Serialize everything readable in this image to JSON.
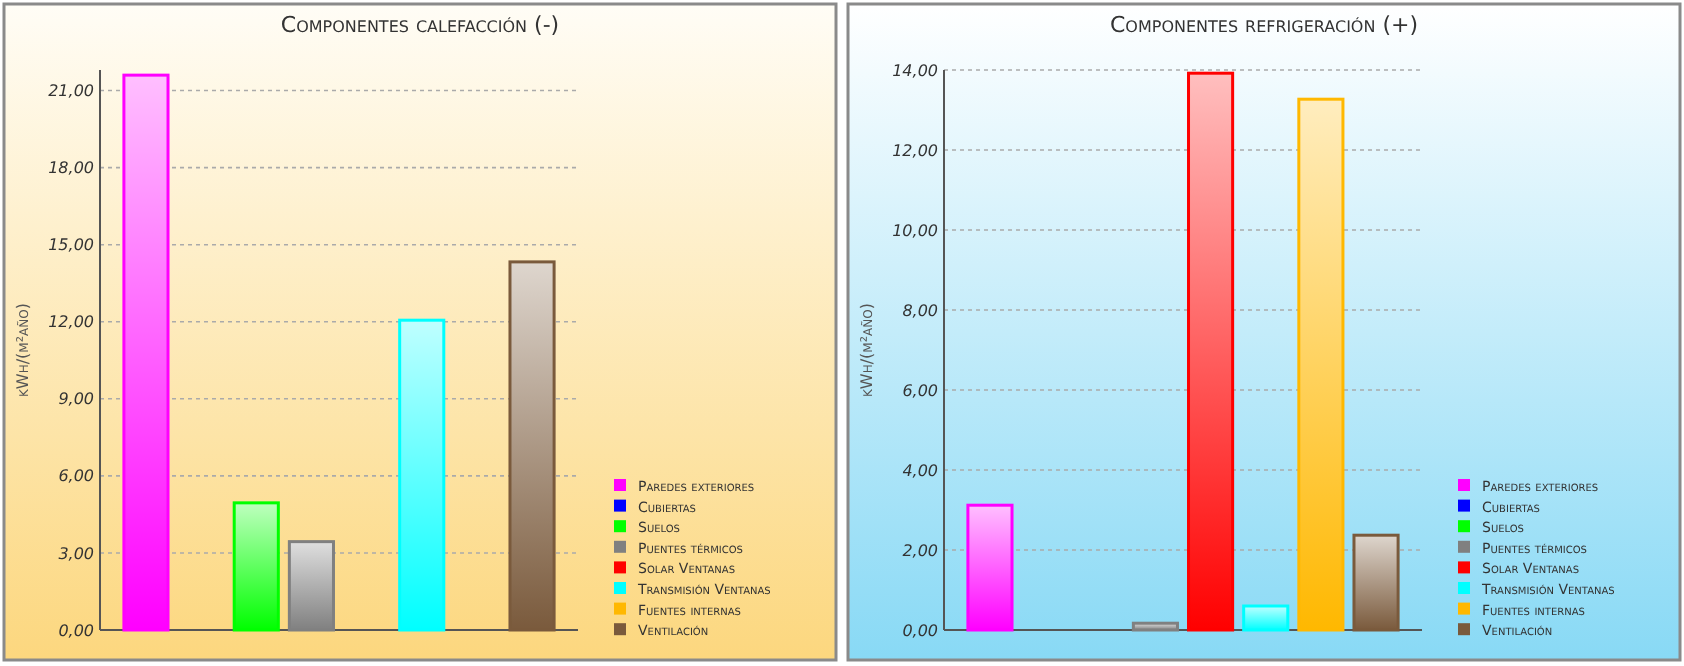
{
  "chart_data": [
    {
      "type": "bar",
      "title": "Componentes calefacción (-)",
      "ylabel": "kWh/(m²año)",
      "categories": [
        null
      ],
      "ylim": [
        0,
        21.8
      ],
      "yticks": [
        {
          "value": 0,
          "label": "0,00"
        },
        {
          "value": 3,
          "label": "3,00"
        },
        {
          "value": 6,
          "label": "6,00"
        },
        {
          "value": 9,
          "label": "9,00"
        },
        {
          "value": 12,
          "label": "12,00"
        },
        {
          "value": 15,
          "label": "15,00"
        },
        {
          "value": 18,
          "label": "18,00"
        },
        {
          "value": 21,
          "label": "21,00"
        }
      ],
      "grid": "y",
      "legend": "right",
      "series": [
        {
          "name": "Paredes exteriores",
          "color": "#ff00ff",
          "values": [
            21.6
          ]
        },
        {
          "name": "Cubiertas",
          "color": "#0000ff",
          "values": [
            0
          ]
        },
        {
          "name": "Suelos",
          "color": "#00ff00",
          "values": [
            4.95
          ]
        },
        {
          "name": "Puentes térmicos",
          "color": "#808080",
          "values": [
            3.44
          ]
        },
        {
          "name": "Solar Ventanas",
          "color": "#ff0000",
          "values": [
            0
          ]
        },
        {
          "name": "Transmisión Ventanas",
          "color": "#00ffff",
          "values": [
            12.06
          ]
        },
        {
          "name": "Fuentes internas",
          "color": "#ffb800",
          "values": [
            0
          ]
        },
        {
          "name": "Ventilación",
          "color": "#7a5a3c",
          "values": [
            14.33
          ]
        }
      ]
    },
    {
      "type": "bar",
      "title": "Componentes refrigeración (+)",
      "ylabel": "kWh/(m²año)",
      "categories": [
        null
      ],
      "ylim": [
        0,
        14
      ],
      "yticks": [
        {
          "value": 0,
          "label": "0,00"
        },
        {
          "value": 2,
          "label": "2,00"
        },
        {
          "value": 4,
          "label": "4,00"
        },
        {
          "value": 6,
          "label": "6,00"
        },
        {
          "value": 8,
          "label": "8,00"
        },
        {
          "value": 10,
          "label": "10,00"
        },
        {
          "value": 12,
          "label": "12,00"
        },
        {
          "value": 14,
          "label": "14,00"
        }
      ],
      "grid": "y",
      "legend": "right",
      "series": [
        {
          "name": "Paredes exteriores",
          "color": "#ff00ff",
          "values": [
            3.12
          ]
        },
        {
          "name": "Cubiertas",
          "color": "#0000ff",
          "values": [
            0
          ]
        },
        {
          "name": "Suelos",
          "color": "#00ff00",
          "values": [
            0
          ]
        },
        {
          "name": "Puentes térmicos",
          "color": "#808080",
          "values": [
            0.17
          ]
        },
        {
          "name": "Solar Ventanas",
          "color": "#ff0000",
          "values": [
            13.92
          ]
        },
        {
          "name": "Transmisión Ventanas",
          "color": "#00ffff",
          "values": [
            0.6
          ]
        },
        {
          "name": "Fuentes internas",
          "color": "#ffb800",
          "values": [
            13.27
          ]
        },
        {
          "name": "Ventilación",
          "color": "#7a5a3c",
          "values": [
            2.37
          ]
        }
      ]
    }
  ]
}
